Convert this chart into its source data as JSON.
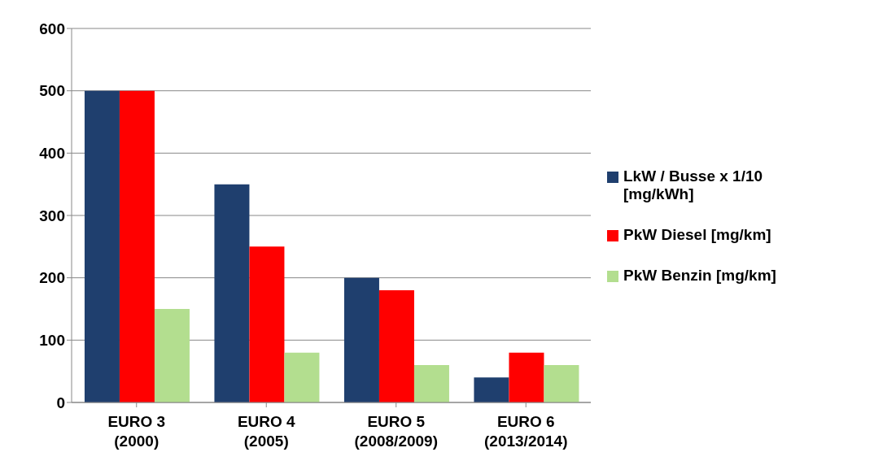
{
  "chart_data": {
    "type": "bar",
    "categories": [
      "EURO 3\n(2000)",
      "EURO 4\n(2005)",
      "EURO 5\n(2008/2009)",
      "EURO 6\n(2013/2014)"
    ],
    "series": [
      {
        "name": "LkW / Busse x 1/10 [mg/kWh]",
        "color": "#1f3f6e",
        "values": [
          500,
          350,
          200,
          40
        ]
      },
      {
        "name": "PkW Diesel [mg/km]",
        "color": "#ff0000",
        "values": [
          500,
          250,
          180,
          80
        ]
      },
      {
        "name": "PkW Benzin [mg/km]",
        "color": "#b3de8f",
        "values": [
          150,
          80,
          60,
          60
        ]
      }
    ],
    "ylim": [
      0,
      600
    ],
    "yticks": [
      0,
      100,
      200,
      300,
      400,
      500,
      600
    ],
    "grid": "y",
    "legend": "right"
  }
}
